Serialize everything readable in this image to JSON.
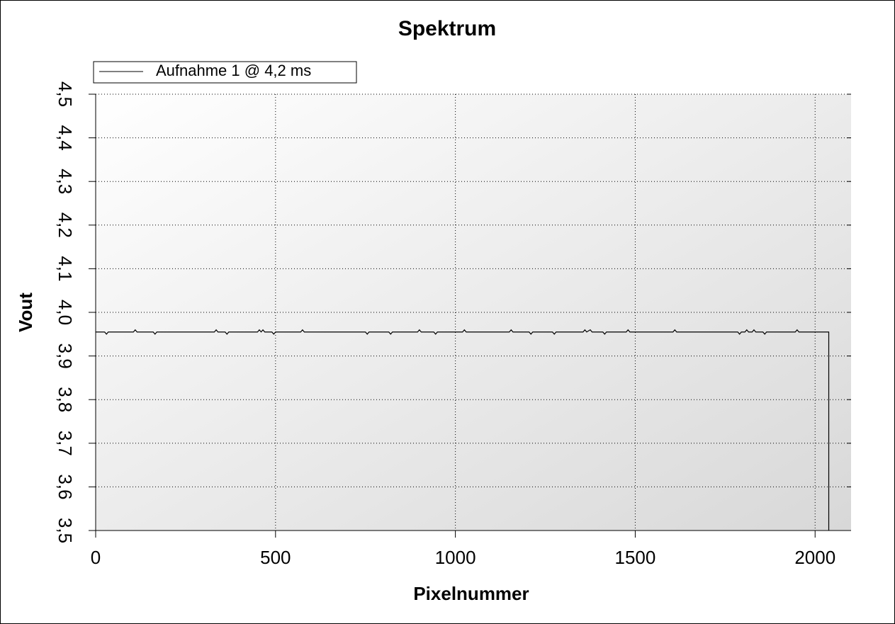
{
  "chart_data": {
    "type": "line",
    "title": "Spektrum",
    "x_label": "Pixelnummer",
    "y_label": "Vout",
    "xlim": [
      0,
      2100
    ],
    "xticks": [
      0,
      500,
      1000,
      1500,
      2000
    ],
    "ylim": [
      3.5,
      4.5
    ],
    "yticks": [
      {
        "value": 3.5,
        "label": "3,5"
      },
      {
        "value": 3.6,
        "label": "3,6"
      },
      {
        "value": 3.7,
        "label": "3,7"
      },
      {
        "value": 3.8,
        "label": "3,8"
      },
      {
        "value": 3.9,
        "label": "3,9"
      },
      {
        "value": 4.0,
        "label": "4,0"
      },
      {
        "value": 4.1,
        "label": "4,1"
      },
      {
        "value": 4.2,
        "label": "4,2"
      },
      {
        "value": 4.3,
        "label": "4,3"
      },
      {
        "value": 4.4,
        "label": "4,4"
      },
      {
        "value": 4.5,
        "label": "4,5"
      }
    ],
    "grid": true,
    "legend": "top-left",
    "x": [
      0,
      25,
      30,
      35,
      105,
      110,
      115,
      160,
      165,
      170,
      330,
      335,
      340,
      360,
      365,
      370,
      450,
      455,
      460,
      465,
      470,
      490,
      495,
      500,
      570,
      575,
      580,
      750,
      755,
      760,
      815,
      820,
      825,
      895,
      900,
      905,
      940,
      945,
      950,
      1020,
      1025,
      1030,
      1150,
      1155,
      1160,
      1205,
      1210,
      1215,
      1270,
      1275,
      1280,
      1355,
      1360,
      1365,
      1375,
      1380,
      1410,
      1415,
      1420,
      1475,
      1480,
      1485,
      1605,
      1610,
      1615,
      1785,
      1790,
      1795,
      1805,
      1810,
      1815,
      1825,
      1830,
      1835,
      1855,
      1860,
      1865,
      1945,
      1950,
      1955,
      2038,
      2038
    ],
    "series": [
      {
        "name": "Aufnahme 1 @ 4,2 ms",
        "color": "#000000",
        "values": [
          3.955,
          3.955,
          3.95,
          3.955,
          3.955,
          3.96,
          3.955,
          3.955,
          3.95,
          3.955,
          3.955,
          3.96,
          3.955,
          3.955,
          3.95,
          3.955,
          3.955,
          3.96,
          3.955,
          3.96,
          3.955,
          3.955,
          3.95,
          3.955,
          3.955,
          3.96,
          3.955,
          3.955,
          3.95,
          3.955,
          3.955,
          3.95,
          3.955,
          3.955,
          3.96,
          3.955,
          3.955,
          3.95,
          3.955,
          3.955,
          3.96,
          3.955,
          3.955,
          3.96,
          3.955,
          3.955,
          3.95,
          3.955,
          3.955,
          3.95,
          3.955,
          3.955,
          3.96,
          3.955,
          3.96,
          3.955,
          3.955,
          3.95,
          3.955,
          3.955,
          3.96,
          3.955,
          3.955,
          3.96,
          3.955,
          3.955,
          3.95,
          3.955,
          3.955,
          3.96,
          3.955,
          3.955,
          3.96,
          3.955,
          3.955,
          3.95,
          3.955,
          3.955,
          3.96,
          3.955,
          3.955,
          3.5
        ]
      }
    ]
  }
}
